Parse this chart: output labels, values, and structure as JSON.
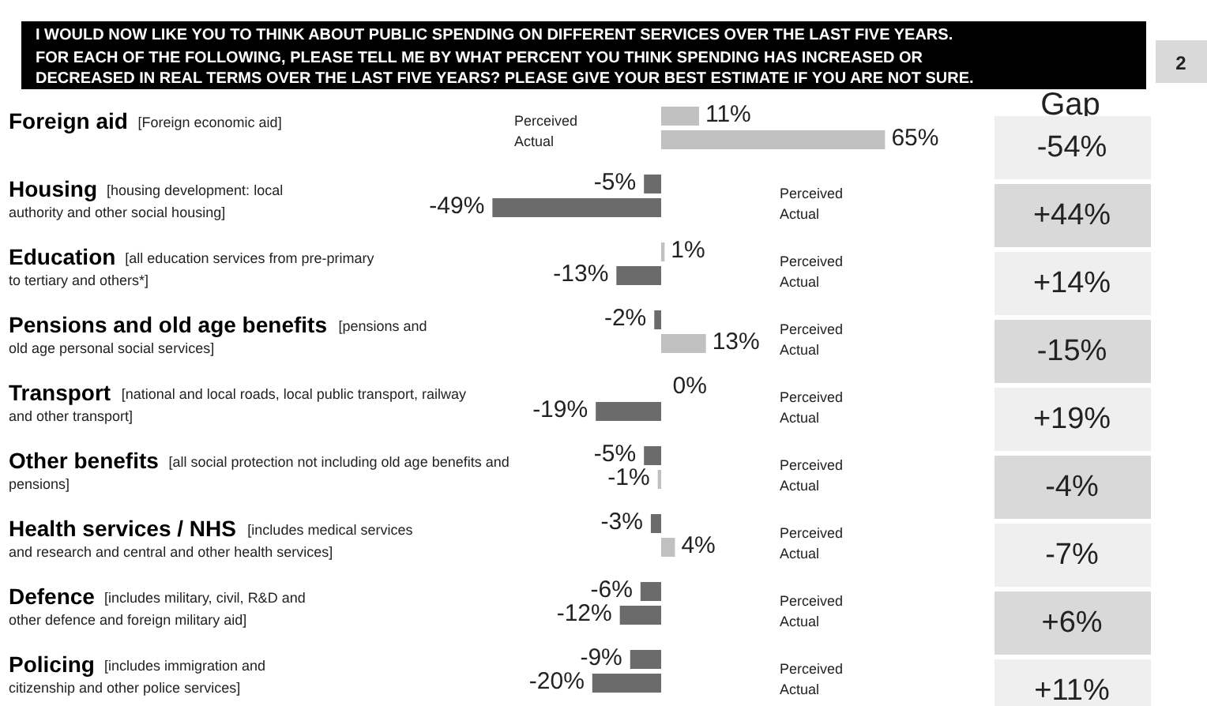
{
  "chart_data": {
    "type": "bar",
    "orientation": "horizontal",
    "title": "I WOULD NOW LIKE YOU TO THINK ABOUT PUBLIC SPENDING ON DIFFERENT SERVICES OVER THE LAST FIVE YEARS.",
    "subtitle": "FOR EACH OF THE FOLLOWING, PLEASE TELL ME BY WHAT PERCENT YOU THINK SPENDING HAS INCREASED OR\nDECREASED IN REAL TERMS OVER THE LAST FIVE YEARS?  PLEASE GIVE YOUR BEST ESTIMATE IF YOU ARE NOT SURE.",
    "categories": [
      "Foreign aid [Foreign economic aid]",
      "Housing [housing development: local\nauthority and other social housing]",
      "Education [all education services from pre-primary\nto tertiary and others*]",
      "Pensions and old age benefits [pensions and\nold age personal social services]",
      "Transport [national and local roads, local public transport, railway\nand other transport]",
      "Other benefits [all social protection not including old age benefits and\npensions]",
      "Health services / NHS [includes medical services\nand research and central and other health services]",
      "Defence [includes military, civil, R&D and\nother defence and foreign military aid]",
      "Policing [includes immigration and\ncitizenship and other police services]"
    ],
    "series": [
      {
        "name": "Perceived",
        "values": [
          11,
          -5,
          1,
          -2,
          0,
          -5,
          -3,
          -6,
          -9
        ],
        "value_labels": [
          "11%",
          "-5%",
          "1%",
          "-2%",
          "0%",
          "-5%",
          "-3%",
          "-6%",
          "-9%"
        ],
        "colors": [
          "#c0c0c0",
          "#6b6b6b",
          "#c0c0c0",
          "#6b6b6b",
          "#c0c0c0",
          "#6b6b6b",
          "#6b6b6b",
          "#6b6b6b",
          "#6b6b6b"
        ]
      },
      {
        "name": "Actual",
        "values": [
          65,
          -49,
          -13,
          13,
          -19,
          -1,
          4,
          -12,
          -20
        ],
        "value_labels": [
          "65%",
          "-49%",
          "-13%",
          "13%",
          "-19%",
          "-1%",
          "4%",
          "-12%",
          "-20%"
        ],
        "colors": [
          "#c0c0c0",
          "#6b6b6b",
          "#6b6b6b",
          "#c0c0c0",
          "#6b6b6b",
          "#c0c0c0",
          "#c0c0c0",
          "#6b6b6b",
          "#6b6b6b"
        ]
      }
    ],
    "annotations": [
      "Gap",
      "-54%",
      "+44%",
      "+14%",
      "-15%",
      "+19%",
      "-4%",
      "-7%",
      "+6%",
      "+11%",
      "2"
    ]
  }
}
